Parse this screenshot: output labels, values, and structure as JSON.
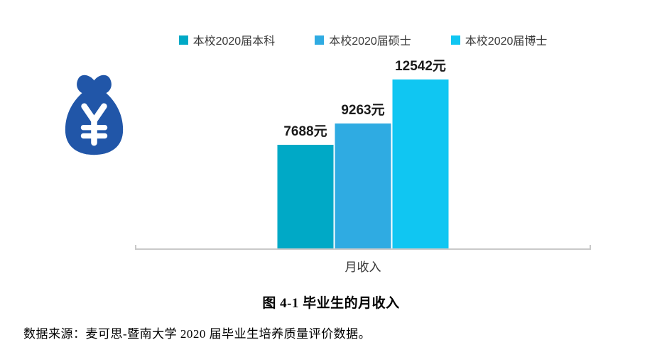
{
  "chart_data": {
    "type": "bar",
    "title": "",
    "categories": [
      "月收入"
    ],
    "series": [
      {
        "name": "本校2020届本科",
        "values": [
          7688
        ],
        "label": "7688元",
        "color": "#00A9C6"
      },
      {
        "name": "本校2020届硕士",
        "values": [
          9263
        ],
        "label": "9263元",
        "color": "#2FABE2"
      },
      {
        "name": "本校2020届博士",
        "values": [
          12542
        ],
        "label": "12542元",
        "color": "#10C6F2"
      }
    ],
    "xlabel": "月收入",
    "ylabel": "",
    "ylim": [
      0,
      12542
    ],
    "grid": false,
    "legend_position": "top",
    "axis_color": "#C9C9C9",
    "data_labels_visible": true
  },
  "caption": "图 4-1 毕业生的月收入",
  "source": "数据来源：麦可思-暨南大学 2020 届毕业生培养质量评价数据。",
  "icon": {
    "name": "money-bag-icon",
    "symbol": "¥",
    "color": "#2156A8",
    "symbol_color": "#FFFFFF"
  }
}
